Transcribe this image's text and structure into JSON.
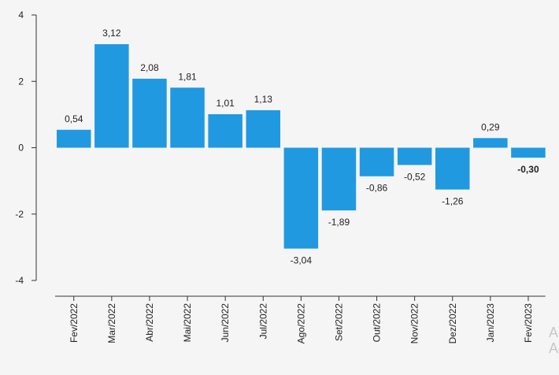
{
  "chart_data": {
    "type": "bar",
    "title": "",
    "xlabel": "",
    "ylabel": "",
    "ylim": [
      -4,
      4
    ],
    "yticks": [
      4,
      2,
      0,
      -2,
      -4
    ],
    "categories": [
      "Fev/2022",
      "Mar/2022",
      "Abr/2022",
      "Mai/2022",
      "Jun/2022",
      "Jul/2022",
      "Ago/2022",
      "Set/2022",
      "Out/2022",
      "Nov/2022",
      "Dez/2022",
      "Jan/2023",
      "Fev/2023"
    ],
    "values": [
      0.54,
      3.12,
      2.08,
      1.81,
      1.01,
      1.13,
      -3.04,
      -1.89,
      -0.86,
      -0.52,
      -1.26,
      0.29,
      -0.3
    ],
    "data_labels": [
      "0,54",
      "3,12",
      "2,08",
      "1,81",
      "1,01",
      "1,13",
      "-3,04",
      "-1,89",
      "-0,86",
      "-0,52",
      "-1,26",
      "0,29",
      "-0,30"
    ],
    "highlighted_label_index": 12,
    "bar_color": "#2199e0",
    "grid": false,
    "legend": "none"
  },
  "watermark": {
    "line1": "A",
    "line2": "Ac"
  }
}
